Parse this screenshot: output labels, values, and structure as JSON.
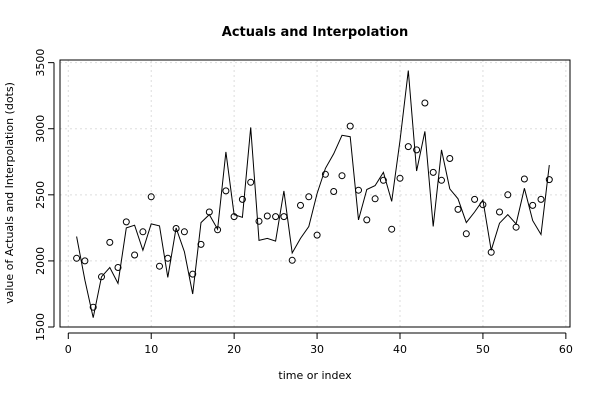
{
  "chart_data": {
    "type": "line",
    "title": "Actuals and Interpolation",
    "xlabel": "time or index",
    "ylabel": "value of Actuals and Interpolation (dots)",
    "xlim": [
      -1,
      60.5
    ],
    "ylim": [
      1500,
      3520
    ],
    "xticks": [
      0,
      10,
      20,
      30,
      40,
      50,
      60
    ],
    "yticks": [
      1500,
      2000,
      2500,
      3000,
      3500
    ],
    "grid": true,
    "series": [
      {
        "style": "line",
        "color": "#000000",
        "x": [
          1,
          2,
          3,
          4,
          5,
          6,
          7,
          8,
          9,
          10,
          11,
          12,
          13,
          14,
          15,
          16,
          17,
          18,
          19,
          20,
          21,
          22,
          23,
          24,
          25,
          26,
          27,
          28,
          29,
          30,
          31,
          32,
          33,
          34,
          35,
          36,
          37,
          38,
          39,
          40,
          41,
          42,
          43,
          44,
          45,
          46,
          47,
          48,
          49,
          50,
          51,
          52,
          53,
          54,
          55,
          56,
          57,
          58
        ],
        "values": [
          2185,
          1855,
          1570,
          1880,
          1950,
          1830,
          2250,
          2270,
          2080,
          2280,
          2265,
          1875,
          2250,
          2070,
          1750,
          2290,
          2350,
          2240,
          2825,
          2350,
          2330,
          3010,
          2155,
          2170,
          2150,
          2530,
          2060,
          2170,
          2260,
          2510,
          2700,
          2810,
          2950,
          2940,
          2310,
          2540,
          2570,
          2670,
          2450,
          2910,
          3440,
          2680,
          2980,
          2260,
          2840,
          2545,
          2470,
          2290,
          2370,
          2460,
          2080,
          2285,
          2350,
          2280,
          2550,
          2305,
          2200,
          2725
        ]
      },
      {
        "style": "points",
        "color": "#000000",
        "x": [
          1,
          2,
          3,
          4,
          5,
          6,
          7,
          8,
          9,
          10,
          11,
          12,
          13,
          14,
          15,
          16,
          17,
          18,
          19,
          20,
          21,
          22,
          23,
          24,
          25,
          26,
          27,
          28,
          29,
          30,
          31,
          32,
          33,
          34,
          35,
          36,
          37,
          38,
          39,
          40,
          41,
          42,
          43,
          44,
          45,
          46,
          47,
          48,
          49,
          50,
          51,
          52,
          53,
          54,
          55,
          56,
          57,
          58
        ],
        "values": [
          2020,
          2000,
          1650,
          1880,
          2140,
          1950,
          2295,
          2045,
          2220,
          2485,
          1960,
          2020,
          2245,
          2220,
          1900,
          2125,
          2370,
          2235,
          2530,
          2335,
          2465,
          2595,
          2300,
          2340,
          2335,
          2335,
          2005,
          2420,
          2485,
          2195,
          2655,
          2525,
          2645,
          3020,
          2535,
          2310,
          2470,
          2610,
          2240,
          2625,
          2865,
          2840,
          3195,
          2670,
          2610,
          2775,
          2390,
          2205,
          2465,
          2425,
          2065,
          2370,
          2500,
          2255,
          2620,
          2420,
          2465,
          2615
        ]
      }
    ]
  }
}
